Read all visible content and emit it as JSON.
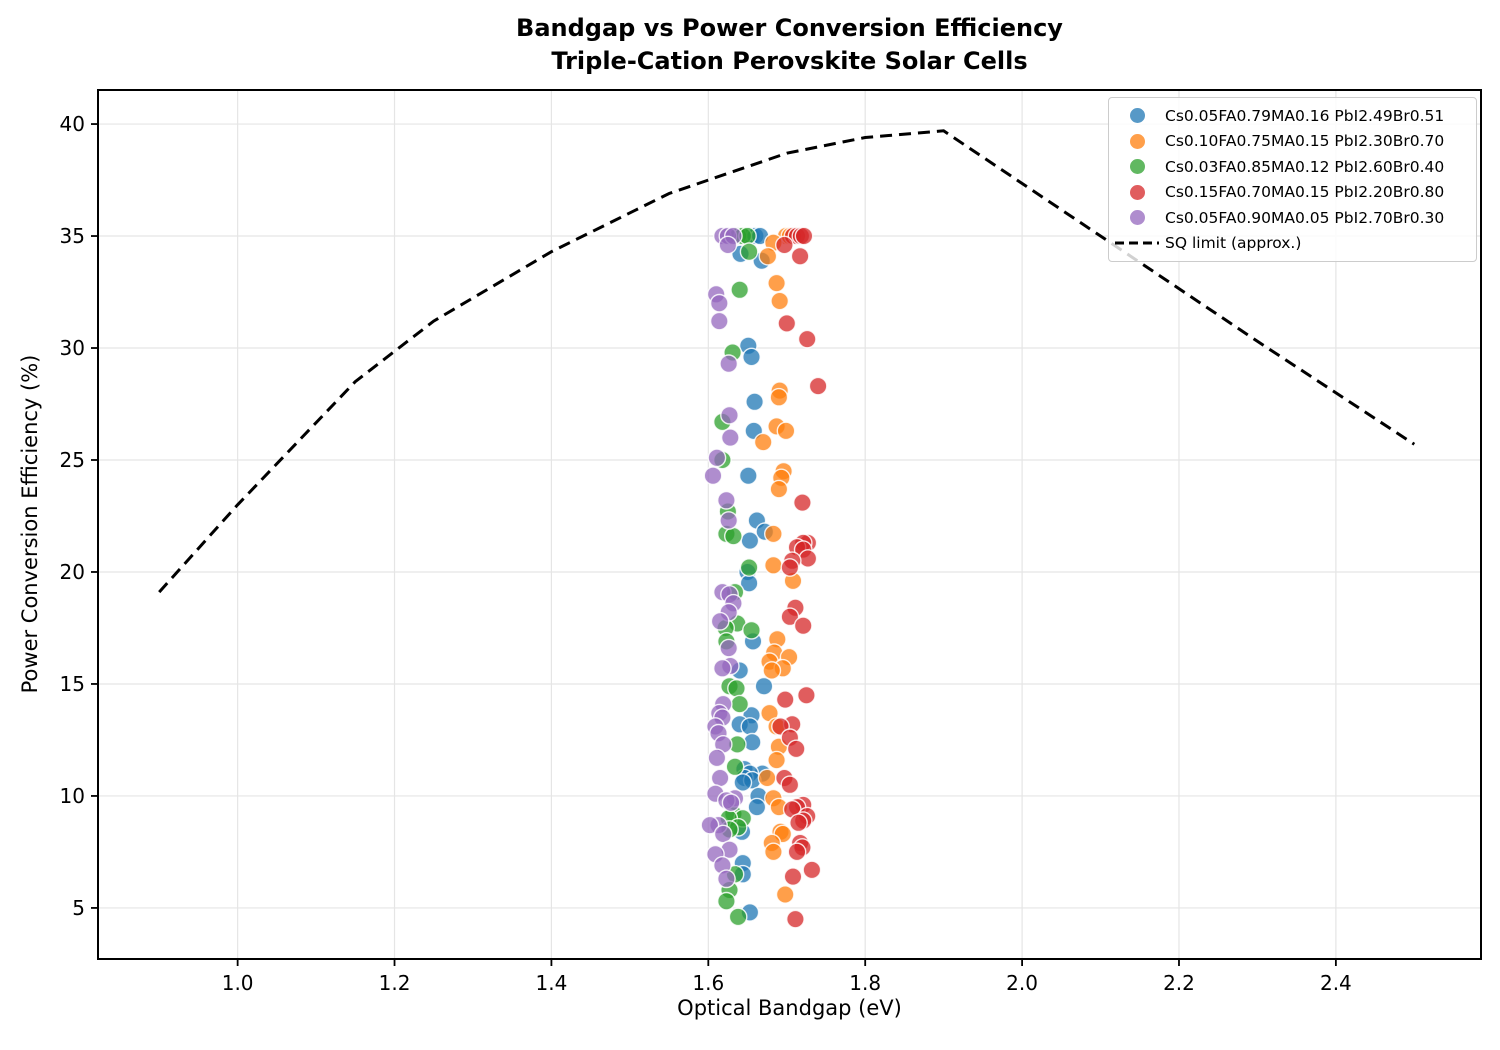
{
  "title": {
    "line1": "Bandgap vs Power Conversion Efficiency",
    "line2": "Triple-Cation Perovskite Solar Cells"
  },
  "chart_data": {
    "type": "scatter",
    "xlabel": "Optical Bandgap (eV)",
    "ylabel": "Power Conversion Efficiency (%)",
    "xlim": [
      0.822,
      2.585
    ],
    "ylim": [
      2.72,
      41.52
    ],
    "xticks": [
      "1.0",
      "1.2",
      "1.4",
      "1.6",
      "1.8",
      "2.0",
      "2.2",
      "2.4"
    ],
    "xtick_values": [
      1.0,
      1.2,
      1.4,
      1.6,
      1.8,
      2.0,
      2.2,
      2.4
    ],
    "yticks": [
      "5",
      "10",
      "15",
      "20",
      "25",
      "30",
      "35",
      "40"
    ],
    "ytick_values": [
      5,
      10,
      15,
      20,
      25,
      30,
      35,
      40
    ],
    "grid": true,
    "grid_color": "#e5e5e5",
    "legend_position": "upper right",
    "marker_alpha": 0.75,
    "series": [
      {
        "name": "Cs0.05FA0.79MA0.16 PbI2.49Br0.51",
        "color": "#1f77b4",
        "points": [
          [
            1.655,
            35.0
          ],
          [
            1.66,
            35.0
          ],
          [
            1.666,
            35.0
          ],
          [
            1.641,
            34.2
          ],
          [
            1.668,
            33.9
          ],
          [
            1.651,
            30.1
          ],
          [
            1.655,
            29.6
          ],
          [
            1.659,
            27.6
          ],
          [
            1.658,
            26.3
          ],
          [
            1.651,
            24.3
          ],
          [
            1.662,
            22.3
          ],
          [
            1.672,
            21.8
          ],
          [
            1.653,
            21.4
          ],
          [
            1.65,
            20.0
          ],
          [
            1.652,
            19.5
          ],
          [
            1.657,
            16.9
          ],
          [
            1.64,
            15.6
          ],
          [
            1.671,
            14.9
          ],
          [
            1.655,
            13.6
          ],
          [
            1.64,
            13.2
          ],
          [
            1.653,
            13.1
          ],
          [
            1.656,
            12.4
          ],
          [
            1.646,
            11.2
          ],
          [
            1.669,
            11.0
          ],
          [
            1.653,
            11.0
          ],
          [
            1.646,
            10.8
          ],
          [
            1.656,
            10.7
          ],
          [
            1.644,
            10.6
          ],
          [
            1.664,
            10.0
          ],
          [
            1.662,
            9.5
          ],
          [
            1.643,
            8.4
          ],
          [
            1.644,
            7.0
          ],
          [
            1.644,
            6.5
          ],
          [
            1.653,
            4.8
          ]
        ]
      },
      {
        "name": "Cs0.10FA0.75MA0.15 PbI2.30Br0.70",
        "color": "#ff7f0e",
        "points": [
          [
            1.699,
            35.0
          ],
          [
            1.704,
            35.0
          ],
          [
            1.683,
            34.7
          ],
          [
            1.676,
            34.1
          ],
          [
            1.687,
            32.9
          ],
          [
            1.691,
            32.1
          ],
          [
            1.691,
            28.1
          ],
          [
            1.69,
            27.8
          ],
          [
            1.687,
            26.5
          ],
          [
            1.699,
            26.3
          ],
          [
            1.67,
            25.8
          ],
          [
            1.696,
            24.5
          ],
          [
            1.693,
            24.2
          ],
          [
            1.69,
            23.7
          ],
          [
            1.683,
            21.7
          ],
          [
            1.683,
            20.3
          ],
          [
            1.708,
            19.6
          ],
          [
            1.688,
            17.0
          ],
          [
            1.684,
            16.4
          ],
          [
            1.703,
            16.2
          ],
          [
            1.678,
            16.0
          ],
          [
            1.695,
            15.7
          ],
          [
            1.681,
            15.6
          ],
          [
            1.678,
            13.7
          ],
          [
            1.687,
            13.1
          ],
          [
            1.69,
            12.2
          ],
          [
            1.687,
            11.6
          ],
          [
            1.675,
            10.8
          ],
          [
            1.683,
            9.9
          ],
          [
            1.69,
            9.5
          ],
          [
            1.692,
            8.4
          ],
          [
            1.695,
            8.3
          ],
          [
            1.681,
            7.9
          ],
          [
            1.683,
            7.5
          ],
          [
            1.698,
            5.6
          ]
        ]
      },
      {
        "name": "Cs0.03FA0.85MA0.12 PbI2.60Br0.40",
        "color": "#2ca02c",
        "points": [
          [
            1.638,
            35.0
          ],
          [
            1.644,
            35.0
          ],
          [
            1.65,
            35.0
          ],
          [
            1.652,
            34.3
          ],
          [
            1.64,
            32.6
          ],
          [
            1.631,
            29.8
          ],
          [
            1.618,
            26.7
          ],
          [
            1.618,
            25.0
          ],
          [
            1.625,
            22.7
          ],
          [
            1.623,
            21.7
          ],
          [
            1.632,
            21.6
          ],
          [
            1.652,
            20.2
          ],
          [
            1.634,
            19.1
          ],
          [
            1.637,
            17.7
          ],
          [
            1.622,
            17.5
          ],
          [
            1.655,
            17.4
          ],
          [
            1.623,
            16.9
          ],
          [
            1.627,
            14.9
          ],
          [
            1.636,
            14.8
          ],
          [
            1.64,
            14.1
          ],
          [
            1.637,
            12.3
          ],
          [
            1.634,
            11.3
          ],
          [
            1.632,
            9.2
          ],
          [
            1.644,
            9.0
          ],
          [
            1.626,
            9.0
          ],
          [
            1.638,
            8.6
          ],
          [
            1.627,
            8.5
          ],
          [
            1.634,
            6.5
          ],
          [
            1.627,
            5.8
          ],
          [
            1.623,
            5.3
          ],
          [
            1.638,
            4.6
          ]
        ]
      },
      {
        "name": "Cs0.15FA0.70MA0.15 PbI2.20Br0.80",
        "color": "#d62728",
        "points": [
          [
            1.708,
            35.0
          ],
          [
            1.713,
            35.0
          ],
          [
            1.718,
            35.0
          ],
          [
            1.722,
            35.0
          ],
          [
            1.697,
            34.6
          ],
          [
            1.717,
            34.1
          ],
          [
            1.7,
            31.1
          ],
          [
            1.726,
            30.4
          ],
          [
            1.74,
            28.3
          ],
          [
            1.72,
            23.1
          ],
          [
            1.727,
            21.3
          ],
          [
            1.721,
            21.3
          ],
          [
            1.713,
            21.1
          ],
          [
            1.721,
            21.0
          ],
          [
            1.727,
            20.6
          ],
          [
            1.707,
            20.5
          ],
          [
            1.704,
            20.2
          ],
          [
            1.711,
            18.4
          ],
          [
            1.704,
            18.0
          ],
          [
            1.721,
            17.6
          ],
          [
            1.725,
            14.5
          ],
          [
            1.698,
            14.3
          ],
          [
            1.707,
            13.2
          ],
          [
            1.692,
            13.1
          ],
          [
            1.704,
            12.6
          ],
          [
            1.712,
            12.1
          ],
          [
            1.697,
            10.8
          ],
          [
            1.704,
            10.5
          ],
          [
            1.721,
            9.6
          ],
          [
            1.713,
            9.5
          ],
          [
            1.707,
            9.4
          ],
          [
            1.726,
            9.1
          ],
          [
            1.721,
            8.9
          ],
          [
            1.715,
            8.8
          ],
          [
            1.717,
            7.9
          ],
          [
            1.72,
            7.7
          ],
          [
            1.713,
            7.5
          ],
          [
            1.732,
            6.7
          ],
          [
            1.708,
            6.4
          ],
          [
            1.711,
            4.5
          ]
        ]
      },
      {
        "name": "Cs0.05FA0.90MA0.05 PbI2.70Br0.30",
        "color": "#9467bd",
        "points": [
          [
            1.618,
            35.0
          ],
          [
            1.625,
            35.0
          ],
          [
            1.632,
            35.0
          ],
          [
            1.625,
            34.6
          ],
          [
            1.61,
            32.4
          ],
          [
            1.614,
            32.0
          ],
          [
            1.614,
            31.2
          ],
          [
            1.626,
            29.3
          ],
          [
            1.627,
            27.0
          ],
          [
            1.628,
            26.0
          ],
          [
            1.611,
            25.1
          ],
          [
            1.606,
            24.3
          ],
          [
            1.623,
            23.2
          ],
          [
            1.626,
            22.3
          ],
          [
            1.618,
            19.1
          ],
          [
            1.627,
            19.0
          ],
          [
            1.632,
            18.6
          ],
          [
            1.626,
            18.2
          ],
          [
            1.615,
            17.8
          ],
          [
            1.626,
            16.6
          ],
          [
            1.628,
            15.8
          ],
          [
            1.618,
            15.7
          ],
          [
            1.619,
            14.1
          ],
          [
            1.614,
            13.7
          ],
          [
            1.618,
            13.5
          ],
          [
            1.609,
            13.1
          ],
          [
            1.613,
            12.8
          ],
          [
            1.619,
            12.3
          ],
          [
            1.611,
            11.7
          ],
          [
            1.615,
            10.8
          ],
          [
            1.609,
            10.1
          ],
          [
            1.634,
            9.9
          ],
          [
            1.623,
            9.8
          ],
          [
            1.629,
            9.7
          ],
          [
            1.613,
            8.7
          ],
          [
            1.602,
            8.7
          ],
          [
            1.619,
            8.3
          ],
          [
            1.627,
            7.6
          ],
          [
            1.609,
            7.4
          ],
          [
            1.618,
            6.9
          ],
          [
            1.623,
            6.3
          ]
        ]
      }
    ],
    "line_series": {
      "name": "SQ limit (approx.)",
      "color": "#000000",
      "style": "dashed",
      "points": [
        [
          0.9,
          19.1
        ],
        [
          1.0,
          23.0
        ],
        [
          1.15,
          28.5
        ],
        [
          1.25,
          31.2
        ],
        [
          1.4,
          34.3
        ],
        [
          1.55,
          36.9
        ],
        [
          1.7,
          38.7
        ],
        [
          1.8,
          39.4
        ],
        [
          1.9,
          39.7
        ],
        [
          2.1,
          35.0
        ],
        [
          2.3,
          30.3
        ],
        [
          2.5,
          25.7
        ]
      ]
    }
  }
}
